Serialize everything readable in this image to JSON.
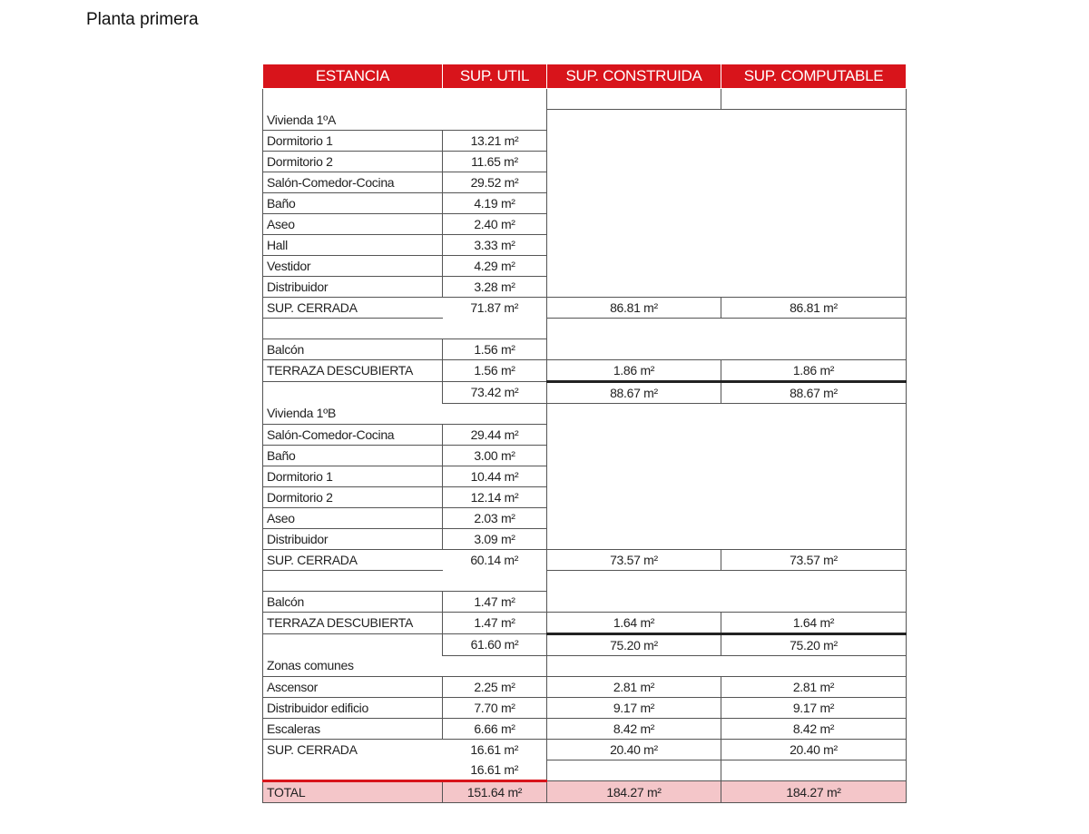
{
  "title": "Planta primera",
  "colors": {
    "header_bg": "#d8141b",
    "total_bg": "#f4c6c9",
    "separator": "#d8141b"
  },
  "table": {
    "headers": [
      "ESTANCIA",
      "SUP. UTIL",
      "SUP. CONSTRUIDA",
      "SUP. COMPUTABLE"
    ],
    "rows": [
      {
        "kind": "blank",
        "cells": [
          "",
          "",
          "",
          ""
        ]
      },
      {
        "kind": "section",
        "cells": [
          "Vivienda 1ºA",
          "",
          "",
          ""
        ]
      },
      {
        "kind": "item",
        "cells": [
          "Dormitorio 1",
          "13.21 m²",
          "",
          ""
        ]
      },
      {
        "kind": "item",
        "cells": [
          "Dormitorio 2",
          "11.65 m²",
          "",
          ""
        ]
      },
      {
        "kind": "item",
        "cells": [
          "Salón-Comedor-Cocina",
          "29.52 m²",
          "",
          ""
        ]
      },
      {
        "kind": "item",
        "cells": [
          "Baño",
          "4.19 m²",
          "",
          ""
        ]
      },
      {
        "kind": "item",
        "cells": [
          "Aseo",
          "2.40 m²",
          "",
          ""
        ]
      },
      {
        "kind": "item",
        "cells": [
          "Hall",
          "3.33 m²",
          "",
          ""
        ]
      },
      {
        "kind": "item",
        "cells": [
          "Vestidor",
          "4.29 m²",
          "",
          ""
        ]
      },
      {
        "kind": "item",
        "cells": [
          "Distribuidor",
          "3.28 m²",
          "",
          ""
        ]
      },
      {
        "kind": "cerrada",
        "cells": [
          "SUP. CERRADA",
          "71.87 m²",
          "86.81 m²",
          "86.81 m²"
        ]
      },
      {
        "kind": "gap",
        "cells": [
          "",
          "",
          "",
          ""
        ]
      },
      {
        "kind": "item",
        "cells": [
          "Balcón",
          "1.56 m²",
          "",
          ""
        ]
      },
      {
        "kind": "terraza",
        "cells": [
          "TERRAZA DESCUBIERTA",
          "1.56 m²",
          "1.86 m²",
          "1.86 m²"
        ]
      },
      {
        "kind": "subtotal",
        "cells": [
          "",
          "73.42 m²",
          "88.67 m²",
          "88.67 m²"
        ]
      },
      {
        "kind": "section",
        "cells": [
          "Vivienda 1ºB",
          "",
          "",
          ""
        ]
      },
      {
        "kind": "item",
        "cells": [
          "Salón-Comedor-Cocina",
          "29.44 m²",
          "",
          ""
        ]
      },
      {
        "kind": "item",
        "cells": [
          "Baño",
          "3.00 m²",
          "",
          ""
        ]
      },
      {
        "kind": "item",
        "cells": [
          "Dormitorio 1",
          "10.44 m²",
          "",
          ""
        ]
      },
      {
        "kind": "item",
        "cells": [
          "Dormitorio 2",
          "12.14 m²",
          "",
          ""
        ]
      },
      {
        "kind": "item",
        "cells": [
          "Aseo",
          "2.03 m²",
          "",
          ""
        ]
      },
      {
        "kind": "item",
        "cells": [
          "Distribuidor",
          "3.09 m²",
          "",
          ""
        ]
      },
      {
        "kind": "cerrada",
        "cells": [
          "SUP. CERRADA",
          "60.14 m²",
          "73.57 m²",
          "73.57 m²"
        ]
      },
      {
        "kind": "gap",
        "cells": [
          "",
          "",
          "",
          ""
        ]
      },
      {
        "kind": "item",
        "cells": [
          "Balcón",
          "1.47 m²",
          "",
          ""
        ]
      },
      {
        "kind": "terraza",
        "cells": [
          "TERRAZA DESCUBIERTA",
          "1.47 m²",
          "1.64 m²",
          "1.64 m²"
        ]
      },
      {
        "kind": "subtotal",
        "cells": [
          "",
          "61.60 m²",
          "75.20 m²",
          "75.20 m²"
        ]
      },
      {
        "kind": "section",
        "cells": [
          "Zonas comunes",
          "",
          "",
          ""
        ]
      },
      {
        "kind": "full",
        "cells": [
          "Ascensor",
          "2.25 m²",
          "2.81 m²",
          "2.81 m²"
        ]
      },
      {
        "kind": "full",
        "cells": [
          "Distribuidor edificio",
          "7.70 m²",
          "9.17 m²",
          "9.17 m²"
        ]
      },
      {
        "kind": "full",
        "cells": [
          "Escaleras",
          "6.66 m²",
          "8.42 m²",
          "8.42 m²"
        ]
      },
      {
        "kind": "cerrada",
        "cells": [
          "SUP. CERRADA",
          "16.61 m²",
          "20.40 m²",
          "20.40 m²"
        ]
      },
      {
        "kind": "final",
        "cells": [
          "",
          "16.61 m²",
          "",
          ""
        ]
      },
      {
        "kind": "total",
        "cells": [
          "TOTAL",
          "151.64 m²",
          "184.27 m²",
          "184.27 m²"
        ]
      }
    ]
  }
}
